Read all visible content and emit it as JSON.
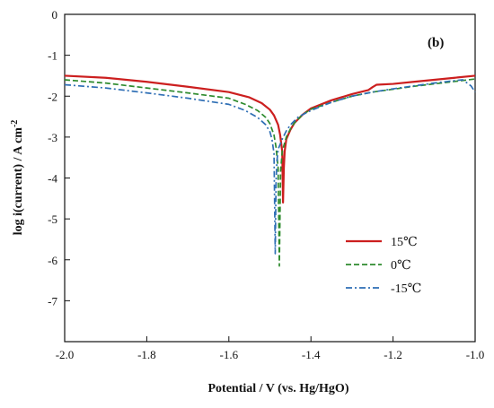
{
  "chart_data": {
    "type": "line",
    "panel_label": "(b)",
    "xlabel": "Potential / V (vs. Hg/HgO)",
    "ylabel": "log i(current) / A cm",
    "ylabel_exponent": "-2",
    "xlim": [
      -2.0,
      -1.0
    ],
    "ylim": [
      -8,
      0
    ],
    "x_ticks": [
      -2.0,
      -1.8,
      -1.6,
      -1.4,
      -1.2,
      -1.0
    ],
    "x_tick_labels": [
      "-2.0",
      "-1.8",
      "-1.6",
      "-1.4",
      "-1.2",
      "-1.0"
    ],
    "y_ticks": [
      0,
      -1,
      -2,
      -3,
      -4,
      -5,
      -6,
      -7
    ],
    "y_tick_labels": [
      "0",
      "-1",
      "-2",
      "-3",
      "-4",
      "-5",
      "-6",
      "-7"
    ],
    "grid": false,
    "legend_position": "lower-right",
    "series": [
      {
        "name": "15℃",
        "color": "#cc1f1f",
        "dash": "solid",
        "x": [
          -2.0,
          -1.9,
          -1.8,
          -1.7,
          -1.6,
          -1.55,
          -1.52,
          -1.5,
          -1.49,
          -1.48,
          -1.475,
          -1.47,
          -1.468,
          -1.466,
          -1.464,
          -1.46,
          -1.45,
          -1.44,
          -1.42,
          -1.4,
          -1.35,
          -1.3,
          -1.26,
          -1.25,
          -1.24,
          -1.2,
          -1.15,
          -1.1,
          -1.05,
          -1.0
        ],
        "y": [
          -1.5,
          -1.55,
          -1.65,
          -1.77,
          -1.9,
          -2.03,
          -2.17,
          -2.33,
          -2.47,
          -2.7,
          -2.95,
          -3.35,
          -4.6,
          -3.75,
          -3.35,
          -3.05,
          -2.82,
          -2.65,
          -2.45,
          -2.3,
          -2.1,
          -1.95,
          -1.85,
          -1.78,
          -1.72,
          -1.7,
          -1.65,
          -1.6,
          -1.55,
          -1.5
        ]
      },
      {
        "name": "0℃",
        "color": "#2e8b2e",
        "dash": "dashed",
        "x": [
          -2.0,
          -1.9,
          -1.8,
          -1.7,
          -1.6,
          -1.56,
          -1.53,
          -1.51,
          -1.5,
          -1.49,
          -1.485,
          -1.48,
          -1.477,
          -1.474,
          -1.47,
          -1.46,
          -1.45,
          -1.44,
          -1.42,
          -1.4,
          -1.35,
          -1.3,
          -1.25,
          -1.2,
          -1.15,
          -1.1,
          -1.05,
          -1.0
        ],
        "y": [
          -1.6,
          -1.68,
          -1.8,
          -1.92,
          -2.05,
          -2.2,
          -2.35,
          -2.52,
          -2.67,
          -2.95,
          -3.25,
          -3.75,
          -6.15,
          -3.85,
          -3.35,
          -3.0,
          -2.8,
          -2.65,
          -2.45,
          -2.32,
          -2.15,
          -2.0,
          -1.9,
          -1.83,
          -1.76,
          -1.7,
          -1.64,
          -1.58
        ]
      },
      {
        "name": "-15℃",
        "color": "#2f6fb5",
        "dash": "dashdot",
        "x": [
          -2.0,
          -1.9,
          -1.8,
          -1.7,
          -1.6,
          -1.56,
          -1.53,
          -1.51,
          -1.5,
          -1.495,
          -1.49,
          -1.487,
          -1.485,
          -1.483,
          -1.48,
          -1.47,
          -1.46,
          -1.45,
          -1.43,
          -1.4,
          -1.35,
          -1.3,
          -1.25,
          -1.2,
          -1.15,
          -1.1,
          -1.05,
          -1.03,
          -1.01,
          -1.0
        ],
        "y": [
          -1.72,
          -1.8,
          -1.92,
          -2.05,
          -2.2,
          -2.35,
          -2.52,
          -2.7,
          -2.87,
          -3.05,
          -3.4,
          -5.85,
          -4.1,
          -3.6,
          -3.3,
          -3.05,
          -2.85,
          -2.7,
          -2.5,
          -2.35,
          -2.15,
          -2.0,
          -1.9,
          -1.82,
          -1.75,
          -1.68,
          -1.62,
          -1.6,
          -1.75,
          -1.9
        ]
      }
    ]
  }
}
